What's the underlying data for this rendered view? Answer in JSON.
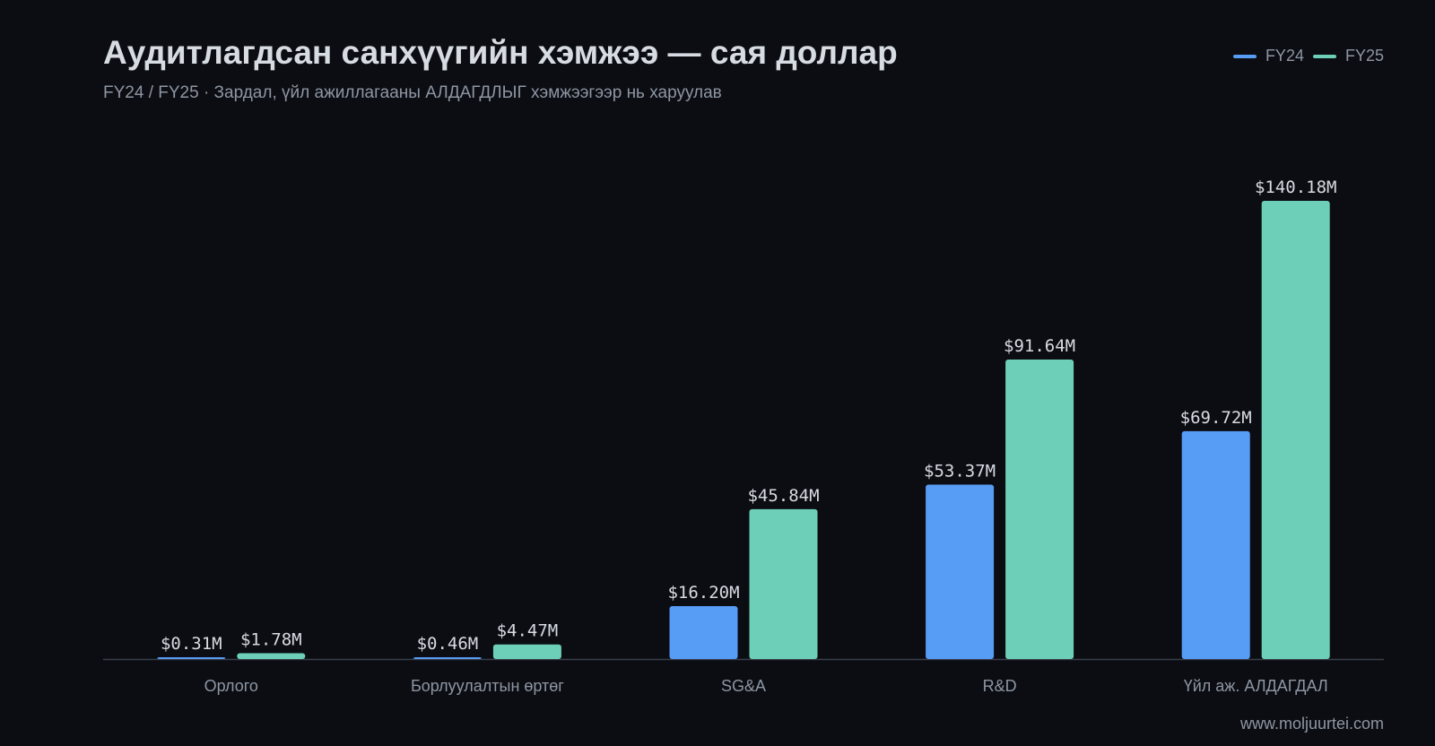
{
  "header": {
    "title": "Аудитлагдсан санхүүгийн хэмжээ — сая доллар",
    "subtitle": "FY24 / FY25 · Зардал, үйл ажиллагааны АЛДАГДЛЫГ хэмжээгээр нь харуулав"
  },
  "legend": [
    {
      "label": "FY24",
      "color": "#579cf5"
    },
    {
      "label": "FY25",
      "color": "#6ecfb9"
    }
  ],
  "footer": {
    "watermark": "www.moljuurtei.com"
  },
  "colors": {
    "background": "#0b0d12",
    "axis": "#3a3f4a",
    "text": "#d7dbe2",
    "muted": "#8e96a3"
  },
  "chart_data": {
    "type": "bar",
    "title": "Аудитлагдсан санхүүгийн хэмжээ — сая доллар",
    "subtitle": "FY24 / FY25 · Зардал, үйл ажиллагааны АЛДАГДЛЫГ хэмжээгээр нь харуулав",
    "categories": [
      "Орлого",
      "Борлуулалтын өртөг",
      "SG&A",
      "R&D",
      "Үйл аж. АЛДАГДАЛ"
    ],
    "series": [
      {
        "name": "FY24",
        "color": "#579cf5",
        "values": [
          0.31,
          0.46,
          16.2,
          53.37,
          69.72
        ],
        "labels": [
          "$0.31M",
          "$0.46M",
          "$16.20M",
          "$53.37M",
          "$69.72M"
        ]
      },
      {
        "name": "FY25",
        "color": "#6ecfb9",
        "values": [
          1.78,
          4.47,
          45.84,
          91.64,
          140.18
        ],
        "labels": [
          "$1.78M",
          "$4.47M",
          "$45.84M",
          "$91.64M",
          "$140.18M"
        ]
      }
    ],
    "ylim": [
      0,
      140.18
    ],
    "grid": false,
    "legend_position": "top-right"
  }
}
